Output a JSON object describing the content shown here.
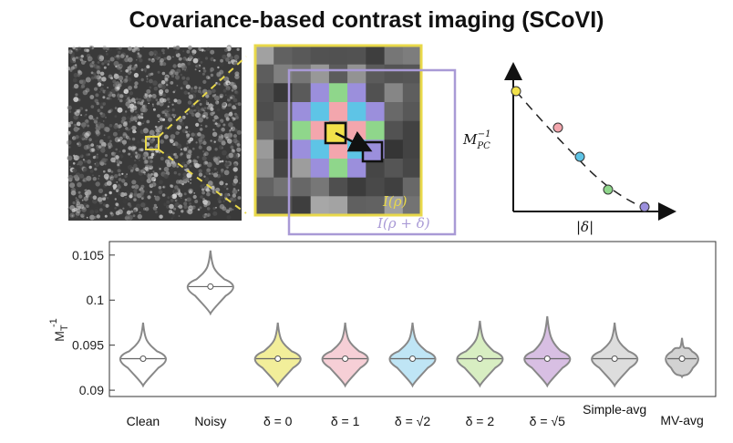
{
  "title": "Covariance-based contrast imaging (SCoVI)",
  "diagram": {
    "label_i_rho": "I(ρ)",
    "label_i_rho_delta": "I(ρ + δ)",
    "inset_ylabel": "M",
    "inset_ylabel_sub": "PC",
    "inset_ylabel_sup": "−1",
    "inset_xlabel": "|δ|",
    "colors": {
      "yellow": "#f2e14a",
      "pink": "#f3a6ad",
      "cyan": "#5ec4e6",
      "green": "#8fd68b",
      "purple": "#9b8fdc",
      "box_yellow": "#e8d84a",
      "box_purple": "#a99ad6"
    },
    "inset_points": [
      {
        "color": "#f2e14a"
      },
      {
        "color": "#f3a6ad"
      },
      {
        "color": "#5ec4e6"
      },
      {
        "color": "#8fd68b"
      },
      {
        "color": "#9b8fdc"
      }
    ]
  },
  "chart_data": {
    "type": "violin",
    "ylabel": "M",
    "ylabel_sub": "T",
    "ylabel_sup": "-1",
    "ylim": [
      0.0893,
      0.1065
    ],
    "yticks": [
      0.09,
      0.095,
      0.1,
      0.105
    ],
    "ytick_labels": [
      "0.09",
      "0.095",
      "0.1",
      "0.105"
    ],
    "categories": [
      "Clean",
      "Noisy",
      "δ = 0",
      "δ = 1",
      "δ = √2",
      "δ = 2",
      "δ = √5",
      "Simple-avg",
      "MV-avg"
    ],
    "series": [
      {
        "median": 0.0935,
        "min": 0.0905,
        "max": 0.0975,
        "color": "#ffffff",
        "line": "#888888"
      },
      {
        "median": 0.1015,
        "min": 0.0985,
        "max": 0.1055,
        "color": "#ffffff",
        "line": "#888888"
      },
      {
        "median": 0.0935,
        "min": 0.0905,
        "max": 0.0975,
        "color": "#f2ee9a",
        "line": "#888888"
      },
      {
        "median": 0.0935,
        "min": 0.0905,
        "max": 0.0975,
        "color": "#f6cfd6",
        "line": "#888888"
      },
      {
        "median": 0.0935,
        "min": 0.0905,
        "max": 0.0975,
        "color": "#bfe5f5",
        "line": "#888888"
      },
      {
        "median": 0.0935,
        "min": 0.0905,
        "max": 0.0977,
        "color": "#d8eec2",
        "line": "#888888"
      },
      {
        "median": 0.0935,
        "min": 0.0905,
        "max": 0.0982,
        "color": "#d8bfe3",
        "line": "#888888"
      },
      {
        "median": 0.0935,
        "min": 0.0905,
        "max": 0.0975,
        "color": "#dddddd",
        "line": "#888888"
      },
      {
        "median": 0.0935,
        "min": 0.0915,
        "max": 0.0958,
        "color": "#d2d2d2",
        "line": "#888888"
      }
    ]
  }
}
